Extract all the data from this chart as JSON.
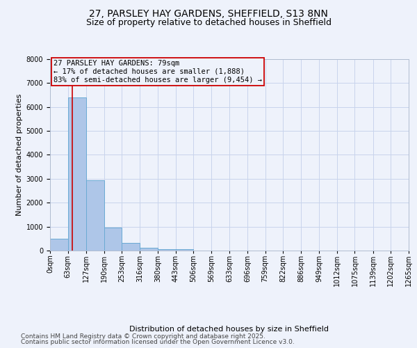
{
  "title": "27, PARSLEY HAY GARDENS, SHEFFIELD, S13 8NN",
  "subtitle": "Size of property relative to detached houses in Sheffield",
  "xlabel": "Distribution of detached houses by size in Sheffield",
  "ylabel": "Number of detached properties",
  "footnote1": "Contains HM Land Registry data © Crown copyright and database right 2025.",
  "footnote2": "Contains public sector information licensed under the Open Government Licence v3.0.",
  "bar_values": [
    500,
    6400,
    2950,
    950,
    330,
    130,
    70,
    50,
    0,
    0,
    0,
    0,
    0,
    0,
    0,
    0,
    0,
    0,
    0,
    0
  ],
  "bin_edges": [
    0,
    63,
    127,
    190,
    253,
    316,
    380,
    443,
    506,
    569,
    633,
    696,
    759,
    822,
    886,
    949,
    1012,
    1075,
    1139,
    1202,
    1265
  ],
  "x_labels": [
    "0sqm",
    "63sqm",
    "127sqm",
    "190sqm",
    "253sqm",
    "316sqm",
    "380sqm",
    "443sqm",
    "506sqm",
    "569sqm",
    "633sqm",
    "696sqm",
    "759sqm",
    "822sqm",
    "886sqm",
    "949sqm",
    "1012sqm",
    "1075sqm",
    "1139sqm",
    "1202sqm",
    "1265sqm"
  ],
  "ylim": [
    0,
    8000
  ],
  "yticks": [
    0,
    1000,
    2000,
    3000,
    4000,
    5000,
    6000,
    7000,
    8000
  ],
  "bar_color": "#aec6e8",
  "bar_edge_color": "#6aaad4",
  "property_line_x": 79,
  "property_line_color": "#cc0000",
  "annotation_text": "27 PARSLEY HAY GARDENS: 79sqm\n← 17% of detached houses are smaller (1,888)\n83% of semi-detached houses are larger (9,454) →",
  "annotation_box_color": "#cc0000",
  "background_color": "#eef2fb",
  "grid_color": "#c8d4ec",
  "title_fontsize": 10,
  "subtitle_fontsize": 9,
  "axis_label_fontsize": 8,
  "tick_fontsize": 7,
  "annotation_fontsize": 7.5,
  "footnote_fontsize": 6.5
}
